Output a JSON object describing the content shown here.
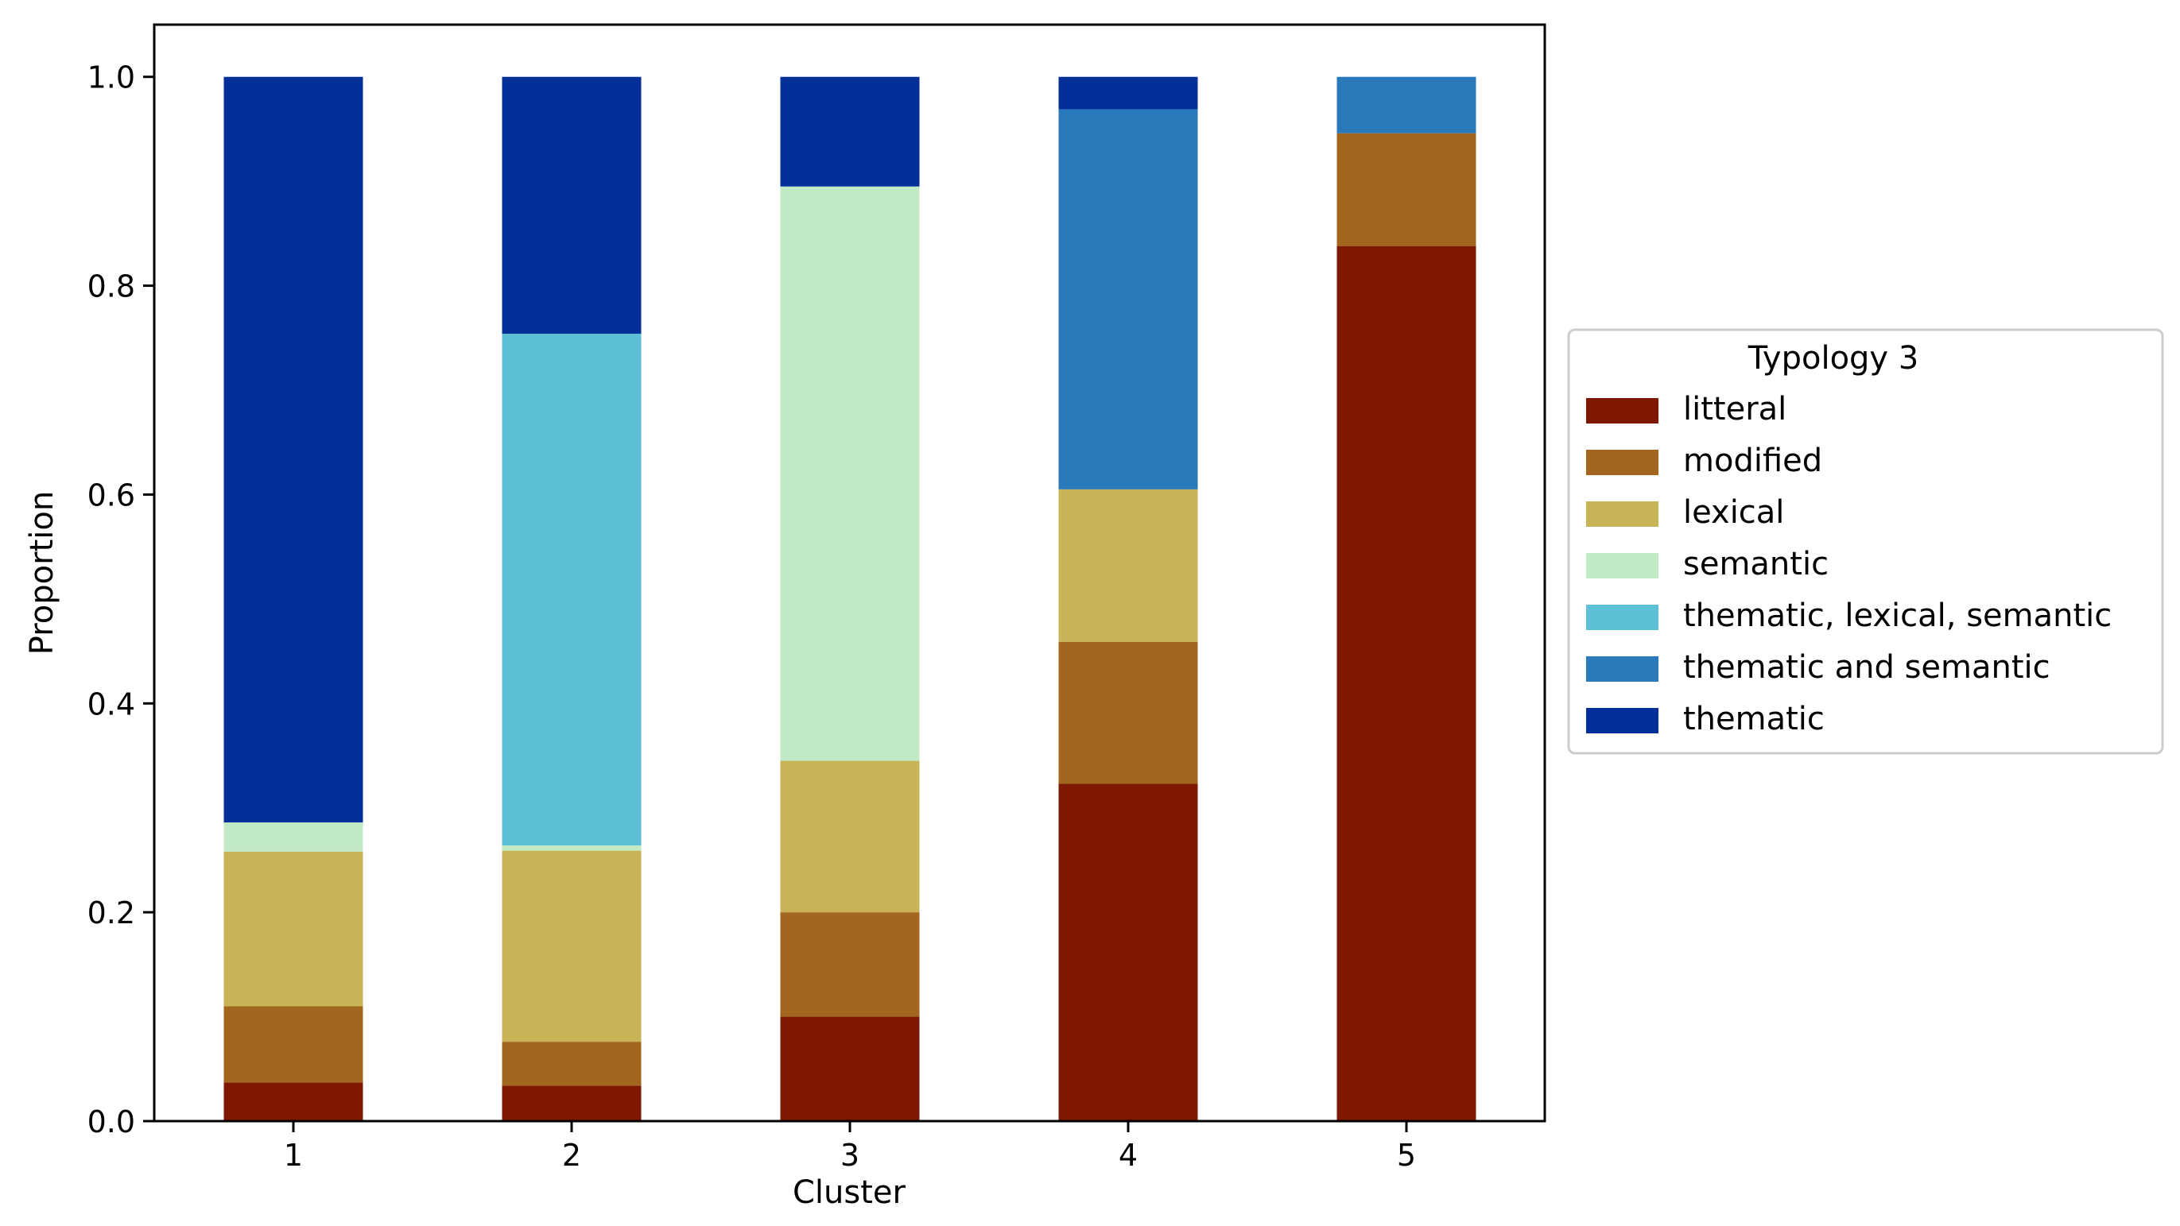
{
  "chart_data": {
    "type": "bar",
    "stacked": true,
    "xlabel": "Cluster",
    "ylabel": "Proportion",
    "ylim": [
      0,
      1.05
    ],
    "yticks": [
      "0.0",
      "0.2",
      "0.4",
      "0.6",
      "0.8",
      "1.0"
    ],
    "categories": [
      "1",
      "2",
      "3",
      "4",
      "5"
    ],
    "legend": {
      "title": "Typology 3",
      "placement": "right-outside"
    },
    "series": [
      {
        "name": "litteral",
        "color": "#7f1800",
        "values": [
          0.037,
          0.034,
          0.1,
          0.323,
          0.838
        ]
      },
      {
        "name": "modified",
        "color": "#a3661f",
        "values": [
          0.073,
          0.042,
          0.1,
          0.136,
          0.108
        ]
      },
      {
        "name": "lexical",
        "color": "#c8b456",
        "values": [
          0.148,
          0.183,
          0.145,
          0.146,
          0.0
        ]
      },
      {
        "name": "semantic",
        "color": "#c2eac4",
        "values": [
          0.028,
          0.005,
          0.55,
          0.0,
          0.0
        ]
      },
      {
        "name": "thematic, lexical, semantic",
        "color": "#5dc0d4",
        "values": [
          0.0,
          0.49,
          0.0,
          0.0,
          0.0
        ]
      },
      {
        "name": "thematic and semantic",
        "color": "#2979bb",
        "values": [
          0.0,
          0.0,
          0.0,
          0.364,
          0.054
        ]
      },
      {
        "name": "thematic",
        "color": "#033098",
        "values": [
          0.714,
          0.246,
          0.105,
          0.031,
          0.0
        ]
      }
    ]
  }
}
